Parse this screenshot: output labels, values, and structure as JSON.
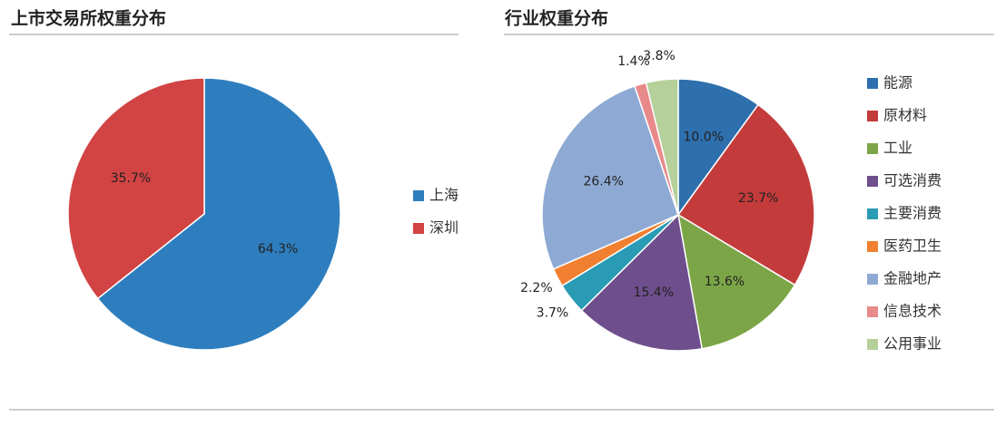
{
  "chart_data": [
    {
      "type": "pie",
      "title": "上市交易所权重分布",
      "categories": [
        "上海",
        "深圳"
      ],
      "values": [
        64.3,
        35.7
      ],
      "value_labels": [
        "64.3%",
        "35.7%"
      ],
      "colors": [
        "#2e7ebf",
        "#d24343"
      ]
    },
    {
      "type": "pie",
      "title": "行业权重分布",
      "categories": [
        "能源",
        "原材料",
        "工业",
        "可选消费",
        "主要消费",
        "医药卫生",
        "金融地产",
        "信息技术",
        "公用事业"
      ],
      "values": [
        10.0,
        23.7,
        13.6,
        15.4,
        3.7,
        2.2,
        26.4,
        1.4,
        3.8
      ],
      "value_labels": [
        "10.0%",
        "23.7%",
        "13.6%",
        "15.4%",
        "3.7%",
        "2.2%",
        "26.4%",
        "1.4%",
        "3.8%"
      ],
      "colors": [
        "#2e6fad",
        "#c43b3b",
        "#7ca547",
        "#6e4e8c",
        "#2a9bb5",
        "#f08030",
        "#8eaad4",
        "#e88a8a",
        "#b5d09a"
      ]
    }
  ]
}
